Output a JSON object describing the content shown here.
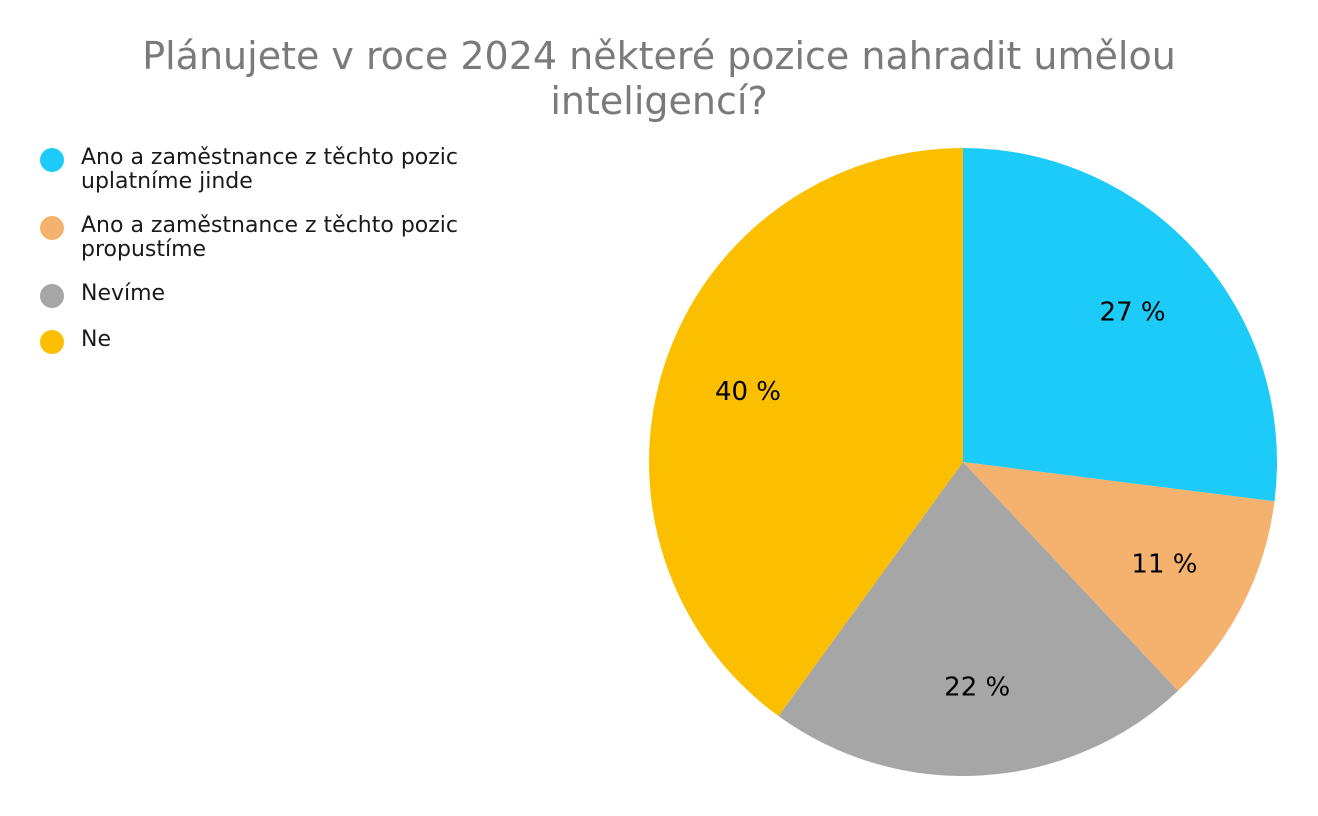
{
  "chart_data": {
    "type": "pie",
    "title": "Plánujete v roce 2024 některé pozice nahradit umělou inteligencí?",
    "title_lines": [
      "Plánujete v roce 2024 některé pozice nahradit umělou",
      "inteligencí?"
    ],
    "legend_position": "top-left",
    "slices": [
      {
        "label": "Ano a zaměstnance z těchto pozic uplatníme jinde",
        "legend_text": "Ano a zaměstnance z těchto pozic\nuplatníme jinde",
        "value": 27,
        "display": "27 %",
        "color": "#1ccbf7"
      },
      {
        "label": "Ano a zaměstnance z těchto pozic propustíme",
        "legend_text": "Ano a zaměstnance z těchto pozic\npropustíme",
        "value": 11,
        "display": "11 %",
        "color": "#f5b26e"
      },
      {
        "label": "Nevíme",
        "legend_text": "Nevíme",
        "value": 22,
        "display": "22 %",
        "color": "#a6a6a6"
      },
      {
        "label": "Ne",
        "legend_text": "Ne",
        "value": 40,
        "display": "40 %",
        "color": "#fcbf00"
      }
    ]
  }
}
